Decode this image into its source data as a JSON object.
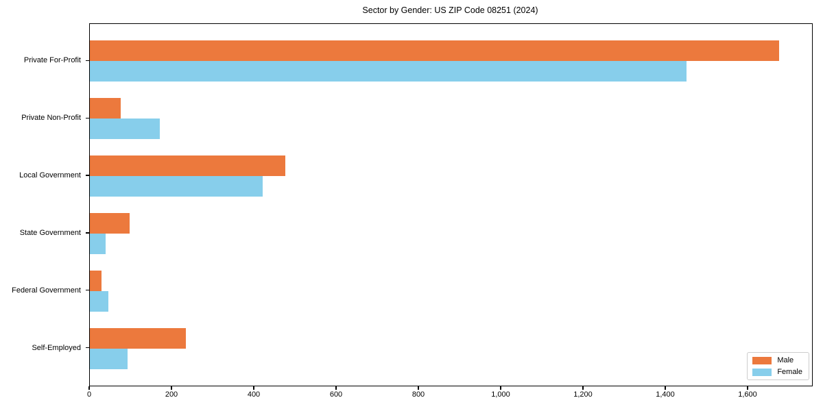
{
  "chart_data": {
    "type": "bar",
    "orientation": "horizontal",
    "title": "Sector by Gender: US ZIP Code 08251 (2024)",
    "categories": [
      "Private For-Profit",
      "Private Non-Profit",
      "Local Government",
      "State Government",
      "Federal Government",
      "Self-Employed"
    ],
    "series": [
      {
        "name": "Male",
        "color": "#EC793D",
        "values": [
          1675,
          75,
          475,
          97,
          28,
          233
        ]
      },
      {
        "name": "Female",
        "color": "#87CEEB",
        "values": [
          1450,
          170,
          420,
          38,
          45,
          92
        ]
      }
    ],
    "xlabel": "",
    "ylabel": "",
    "xlim": [
      0,
      1755
    ],
    "xticks": [
      0,
      200,
      400,
      600,
      800,
      1000,
      1200,
      1400,
      1600
    ],
    "xtick_labels": [
      "0",
      "200",
      "400",
      "600",
      "800",
      "1,000",
      "1,200",
      "1,400",
      "1,600"
    ],
    "grid": false,
    "legend_position": "lower right",
    "colors": {
      "spine": "#000000",
      "background": "#ffffff",
      "legend_border": "#cccccc"
    }
  }
}
